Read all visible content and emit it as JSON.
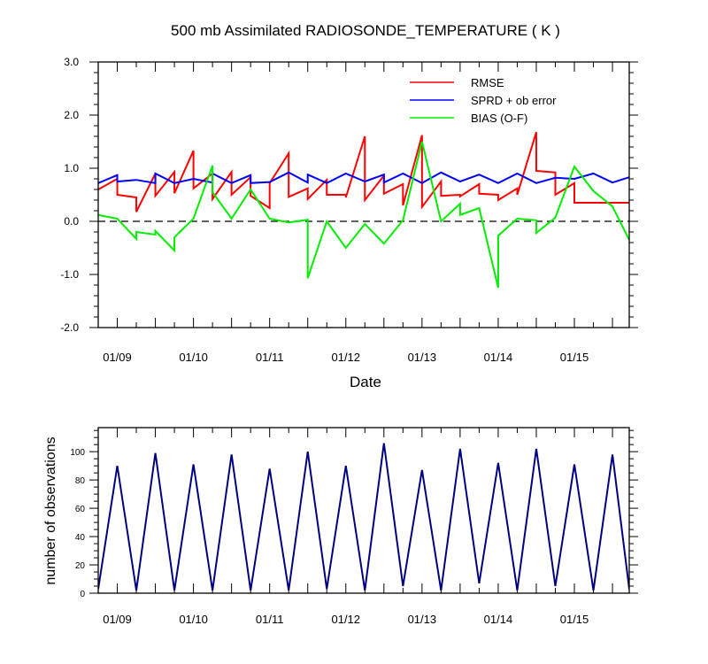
{
  "chart_data": [
    {
      "type": "line",
      "title": "500 mb Assimilated RADIOSONDE_TEMPERATURE ( K )",
      "xlabel": "Date",
      "ylabel": "",
      "xlim": [
        0,
        6.97
      ],
      "ylim": [
        -2.0,
        3.0
      ],
      "yticks": [
        -2.0,
        -1.0,
        0.0,
        1.0,
        2.0,
        3.0
      ],
      "ytick_labels": [
        "-2.0",
        "-1.0",
        "0.0",
        "1.0",
        "2.0",
        "3.0"
      ],
      "xtick_positions": [
        0.25,
        1.25,
        2.25,
        3.25,
        4.25,
        5.25,
        6.25
      ],
      "xtick_labels": [
        "01/09",
        "01/10",
        "01/11",
        "01/12",
        "01/13",
        "01/14",
        "01/15"
      ],
      "zero_line": true,
      "legend": {
        "placement": "top-right",
        "entries": [
          "RMSE",
          "SPRD + ob error",
          "BIAS (O-F)"
        ]
      },
      "series": [
        {
          "name": "RMSE",
          "color": "#ff0000",
          "x": [
            0.0,
            0.25,
            0.25,
            0.5,
            0.5,
            0.75,
            0.75,
            1.0,
            1.0,
            1.25,
            1.25,
            1.5,
            1.5,
            1.75,
            1.75,
            2.0,
            2.0,
            2.25,
            2.25,
            2.5,
            2.5,
            2.75,
            2.75,
            3.0,
            3.0,
            3.25,
            3.25,
            3.5,
            3.5,
            3.75,
            3.75,
            4.0,
            4.0,
            4.25,
            4.25,
            4.5,
            4.5,
            4.75,
            4.75,
            5.0,
            5.0,
            5.25,
            5.25,
            5.5,
            5.5,
            5.75,
            5.75,
            6.0,
            6.0,
            6.25,
            6.25,
            6.5,
            6.5,
            6.75,
            6.75,
            6.97
          ],
          "values": [
            0.6,
            0.8,
            0.5,
            0.45,
            0.18,
            0.9,
            0.48,
            0.93,
            0.53,
            1.33,
            0.62,
            0.9,
            0.42,
            0.93,
            0.5,
            0.83,
            0.48,
            0.25,
            0.72,
            1.28,
            0.46,
            0.62,
            0.42,
            0.78,
            0.5,
            0.5,
            0.45,
            1.6,
            0.4,
            0.86,
            0.52,
            0.7,
            0.3,
            1.62,
            0.27,
            0.75,
            0.48,
            0.5,
            0.47,
            0.7,
            0.52,
            0.5,
            0.4,
            0.62,
            0.5,
            1.68,
            0.95,
            0.92,
            0.5,
            0.72,
            0.35,
            0.35,
            0.35,
            0.35,
            0.35,
            0.35
          ]
        },
        {
          "name": "SPRD + ob error",
          "color": "#0000ff",
          "x": [
            0.0,
            0.25,
            0.25,
            0.5,
            0.75,
            0.75,
            1.0,
            1.25,
            1.5,
            1.5,
            1.75,
            2.0,
            2.0,
            2.25,
            2.5,
            2.75,
            2.75,
            3.0,
            3.25,
            3.5,
            3.75,
            3.75,
            4.0,
            4.25,
            4.5,
            4.75,
            4.75,
            5.0,
            5.25,
            5.5,
            5.75,
            6.0,
            6.25,
            6.5,
            6.75,
            6.97
          ],
          "values": [
            0.72,
            0.87,
            0.75,
            0.78,
            0.72,
            0.9,
            0.72,
            0.8,
            0.73,
            0.9,
            0.72,
            0.87,
            0.72,
            0.74,
            0.92,
            0.73,
            0.88,
            0.72,
            0.9,
            0.75,
            0.88,
            0.73,
            0.9,
            0.72,
            0.92,
            0.75,
            0.75,
            0.88,
            0.72,
            0.9,
            0.72,
            0.82,
            0.8,
            0.9,
            0.73,
            0.83
          ]
        },
        {
          "name": "BIAS (O-F)",
          "color": "#00ee00",
          "x": [
            0.0,
            0.25,
            0.5,
            0.5,
            0.75,
            0.75,
            1.0,
            1.0,
            1.25,
            1.5,
            1.5,
            1.75,
            2.0,
            2.25,
            2.5,
            2.75,
            2.75,
            3.0,
            3.25,
            3.5,
            3.75,
            4.0,
            4.25,
            4.5,
            4.75,
            4.75,
            5.0,
            5.25,
            5.25,
            5.5,
            5.75,
            5.75,
            6.0,
            6.25,
            6.5,
            6.75,
            6.97
          ],
          "values": [
            0.12,
            0.05,
            -0.33,
            -0.2,
            -0.25,
            -0.18,
            -0.55,
            -0.3,
            0.05,
            1.05,
            0.55,
            0.05,
            0.6,
            0.05,
            -0.02,
            0.03,
            -1.07,
            0.0,
            -0.5,
            -0.05,
            -0.42,
            0.02,
            1.5,
            0.0,
            0.33,
            0.12,
            0.25,
            -1.25,
            -0.27,
            0.05,
            0.02,
            -0.22,
            0.07,
            1.03,
            0.57,
            0.28,
            -0.35
          ]
        }
      ]
    },
    {
      "type": "line",
      "title": "",
      "xlabel": "",
      "ylabel": "number of observations",
      "xlim": [
        0,
        6.97
      ],
      "ylim": [
        0,
        117
      ],
      "yticks": [
        0,
        20,
        40,
        60,
        80,
        100
      ],
      "ytick_labels": [
        "0",
        "20",
        "40",
        "60",
        "80",
        "100"
      ],
      "xtick_positions": [
        0.25,
        1.25,
        2.25,
        3.25,
        4.25,
        5.25,
        6.25
      ],
      "xtick_labels": [
        "01/09",
        "01/10",
        "01/11",
        "01/12",
        "01/13",
        "01/14",
        "01/15"
      ],
      "series": [
        {
          "name": "observations",
          "color": "#000080",
          "x": [
            0.0,
            0.25,
            0.5,
            0.75,
            1.0,
            1.25,
            1.5,
            1.75,
            2.0,
            2.25,
            2.5,
            2.75,
            3.0,
            3.25,
            3.5,
            3.75,
            4.0,
            4.25,
            4.5,
            4.75,
            5.0,
            5.25,
            5.5,
            5.75,
            6.0,
            6.25,
            6.5,
            6.75,
            6.97
          ],
          "values": [
            3,
            90,
            2,
            99,
            2,
            91,
            2,
            98,
            2,
            88,
            2,
            100,
            3,
            90,
            2,
            106,
            5,
            87,
            2,
            102,
            7,
            92,
            2,
            102,
            5,
            91,
            2,
            98,
            3
          ]
        }
      ]
    }
  ]
}
